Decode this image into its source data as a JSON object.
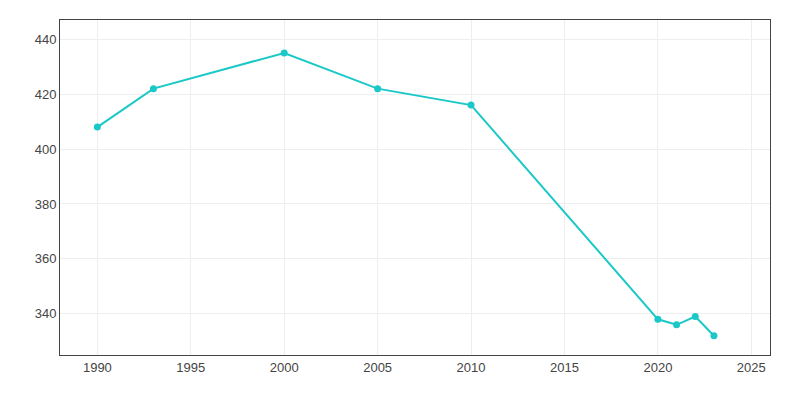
{
  "chart_data": {
    "type": "line",
    "x": [
      1990,
      1993,
      2000,
      2005,
      2010,
      2020,
      2021,
      2022,
      2023
    ],
    "values": [
      408,
      422,
      435,
      422,
      416,
      338,
      336,
      339,
      332
    ],
    "color": "#1bc8c8",
    "marker": "circle",
    "line_style": "solid",
    "xlim": [
      1988,
      2026
    ],
    "ylim": [
      325,
      447
    ],
    "xticks": [
      1990,
      1995,
      2000,
      2005,
      2010,
      2015,
      2020,
      2025
    ],
    "yticks": [
      340,
      360,
      380,
      400,
      420,
      440
    ],
    "grid": true
  }
}
